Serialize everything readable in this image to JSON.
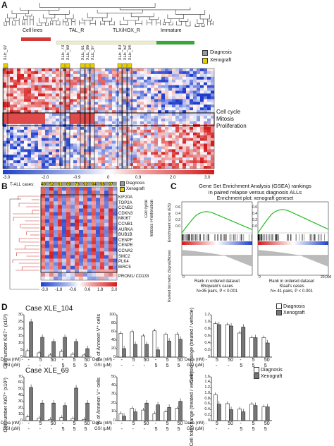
{
  "panelA": {
    "label": "A",
    "groups": [
      "Cell lines",
      "TAL_R",
      "TLX/HOX_R",
      "Immature"
    ],
    "group_colors": [
      "#d23a3a",
      "#e8e3a3",
      "#e8e3a3",
      "#35a835"
    ],
    "legend": [
      {
        "text": "Diagnosis",
        "color": "#9a9a9a"
      },
      {
        "text": "Xenograft",
        "color": "#e7d000"
      }
    ],
    "samples": [
      "XLE_92",
      "XLE_73",
      "XLE_69",
      "XLE_61",
      "XLE_86",
      "XLE_97",
      "XLE_40",
      "XLE_52",
      "XLE_94"
    ],
    "cluster_label": [
      "Cell cycle",
      "Mitosis",
      "Proliferation"
    ],
    "colorbar_ticks": [
      "-3.0",
      "-2.0",
      "-0.9",
      "0",
      "0.9",
      "2.0",
      "3.0"
    ]
  },
  "panelB": {
    "label": "B",
    "header": "T-ALL cases:",
    "cases": [
      "40",
      "52",
      "61",
      "69",
      "73",
      "92",
      "94",
      "96",
      "97"
    ],
    "legend": [
      {
        "text": "Diagnosis",
        "color": "#9a9a9a"
      },
      {
        "text": "Xenograft",
        "color": "#e7d000"
      }
    ],
    "genes": [
      "KIF20A",
      "TOP2A",
      "CCNB2",
      "CDKN3",
      "MKI67",
      "CCNB1",
      "AURKA",
      "BUB1B",
      "CENPF",
      "CENPE",
      "CCNA2",
      "SMC2",
      "PLK4",
      "BIRC5"
    ],
    "side_label": [
      "Cell cycle",
      "Mitosis Proliferation"
    ],
    "extra_gene": "PROM1/ CD133",
    "colorbar_ticks": [
      "-3.0",
      "-1.8",
      "-0.6",
      "0.6",
      "1.8",
      "3.0"
    ]
  },
  "panelC": {
    "label": "C",
    "title": [
      "Gene Set Enrichment Analysis (GSEA) rankings",
      "in paired relapse versus diagnosis ALLs"
    ],
    "subtitle": "Enrichment plot: xenograft geneset",
    "ylabel_top": "Enrichment score (ES)",
    "ylabel_bottom": "Ranked list metric (Signal2Noise)",
    "xlabel": "Rank in ordered dataset",
    "plots": [
      {
        "source": "Bhojwani's cases",
        "stat": "N=35 pairs, P < 0.001"
      },
      {
        "source": "Staal's cases",
        "stat": "N= 41 pairs, P < 0.001"
      }
    ],
    "ticks_top": [
      "0.6",
      "0.4",
      "0.2",
      "0.0"
    ],
    "ticks_bottom": [
      "0",
      "20,000"
    ]
  },
  "panelD": {
    "label": "D",
    "cases": [
      "Case XLE_104",
      "Case XLE_69"
    ],
    "legend": [
      {
        "text": "Diagnosis",
        "color": "#ffffff"
      },
      {
        "text": "Xenograft",
        "color": "#777777"
      }
    ],
    "ylabels": [
      "Cell number Ki67⁺ (x10³)",
      "% of Annexin V⁺ cells",
      "Cell fold change (treated / vehicle)"
    ],
    "dexa_label": "Dexa (nM) -",
    "gsi_label": "GSI (µM)",
    "dexa_values": [
      "-",
      "5",
      "50",
      "-",
      "5",
      "50"
    ],
    "gsi_values": [
      "-",
      "-",
      "-",
      "5",
      "5",
      "5"
    ],
    "row1": {
      "ki67": {
        "ticks": [
          "0",
          "5",
          "10",
          "15",
          "20",
          "25",
          "30"
        ],
        "max": 30,
        "diag": [
          4.5,
          3,
          1.5,
          4,
          2,
          1.5
        ],
        "xeno": [
          25,
          14,
          11,
          14,
          11,
          6
        ]
      },
      "annexin": {
        "ticks": [
          "0",
          "20",
          "40",
          "60",
          "80",
          "100"
        ],
        "max": 100,
        "diag": [
          56,
          60,
          50,
          62,
          54,
          54
        ],
        "xeno": [
          20,
          30,
          30,
          17,
          38,
          42
        ]
      },
      "fold": {
        "ticks": [
          "0",
          "0.2",
          "0.4",
          "0.6",
          "0.8",
          "1.0",
          "1.2"
        ],
        "max": 1.2,
        "diag": [
          0.95,
          0.92,
          0.68,
          0.55,
          0.55
        ],
        "xeno": [
          0.92,
          0.88,
          0.85,
          0.55,
          0.4
        ]
      }
    },
    "row2": {
      "ki67": {
        "ticks": [
          "0",
          "10",
          "20",
          "30",
          "40",
          "50",
          "60",
          "70"
        ],
        "max": 70,
        "diag": [
          6,
          4,
          2,
          5,
          3,
          2
        ],
        "xeno": [
          53,
          28,
          28,
          24,
          52,
          28
        ]
      },
      "annexin": {
        "ticks": [
          "0",
          "10",
          "20",
          "30",
          "40",
          "50"
        ],
        "max": 50,
        "diag": [
          8,
          14,
          12,
          8,
          10,
          14
        ],
        "xeno": [
          5,
          10,
          20,
          18,
          15,
          22
        ]
      },
      "fold": {
        "ticks": [
          "0",
          "0.2",
          "0.4",
          "0.6",
          "0.8",
          "1.0",
          "1.2",
          "1.4",
          "1.6"
        ],
        "max": 1.6,
        "diag": [
          0.95,
          0.62,
          0.42,
          0.6,
          0.5
        ],
        "xeno": [
          0.6,
          0.4,
          0.32,
          0.55,
          0.5
        ]
      }
    }
  },
  "chart_data": [
    {
      "type": "bar",
      "title": "Case XLE_104 Ki67",
      "categories": [
        "-/-",
        "5/-",
        "50/-",
        "-/5",
        "5/5",
        "50/5"
      ],
      "series": [
        {
          "name": "Diagnosis",
          "values": [
            4.5,
            3,
            1.5,
            4,
            2,
            1.5
          ]
        },
        {
          "name": "Xenograft",
          "values": [
            25,
            14,
            11,
            14,
            11,
            6
          ]
        }
      ],
      "ylim": [
        0,
        30
      ]
    },
    {
      "type": "bar",
      "title": "Case XLE_104 Annexin",
      "categories": [
        "-/-",
        "5/-",
        "50/-",
        "-/5",
        "5/5",
        "50/5"
      ],
      "series": [
        {
          "name": "Diagnosis",
          "values": [
            56,
            60,
            50,
            62,
            54,
            54
          ]
        },
        {
          "name": "Xenograft",
          "values": [
            20,
            30,
            30,
            17,
            38,
            42
          ]
        }
      ],
      "ylim": [
        0,
        100
      ]
    },
    {
      "type": "bar",
      "title": "Case XLE_104 Fold",
      "categories": [
        "5/-",
        "50/-",
        "-/5",
        "5/5",
        "50/5"
      ],
      "series": [
        {
          "name": "Diagnosis",
          "values": [
            0.95,
            0.92,
            0.68,
            0.55,
            0.55
          ]
        },
        {
          "name": "Xenograft",
          "values": [
            0.92,
            0.88,
            0.85,
            0.55,
            0.4
          ]
        }
      ],
      "ylim": [
        0,
        1.2
      ]
    },
    {
      "type": "bar",
      "title": "Case XLE_69 Ki67",
      "categories": [
        "-/-",
        "5/-",
        "50/-",
        "-/5",
        "5/5",
        "50/5"
      ],
      "series": [
        {
          "name": "Diagnosis",
          "values": [
            6,
            4,
            2,
            5,
            3,
            2
          ]
        },
        {
          "name": "Xenograft",
          "values": [
            53,
            28,
            28,
            24,
            52,
            28
          ]
        }
      ],
      "ylim": [
        0,
        70
      ]
    },
    {
      "type": "bar",
      "title": "Case XLE_69 Annexin",
      "categories": [
        "-/-",
        "5/-",
        "50/-",
        "-/5",
        "5/5",
        "50/5"
      ],
      "series": [
        {
          "name": "Diagnosis",
          "values": [
            8,
            14,
            12,
            8,
            10,
            14
          ]
        },
        {
          "name": "Xenograft",
          "values": [
            5,
            10,
            20,
            18,
            15,
            22
          ]
        }
      ],
      "ylim": [
        0,
        50
      ]
    },
    {
      "type": "bar",
      "title": "Case XLE_69 Fold",
      "categories": [
        "5/-",
        "50/-",
        "-/5",
        "5/5",
        "50/5"
      ],
      "series": [
        {
          "name": "Diagnosis",
          "values": [
            0.95,
            0.62,
            0.42,
            0.6,
            0.5
          ]
        },
        {
          "name": "Xenograft",
          "values": [
            0.6,
            0.4,
            0.32,
            0.55,
            0.5
          ]
        }
      ],
      "ylim": [
        0,
        1.6
      ]
    }
  ]
}
